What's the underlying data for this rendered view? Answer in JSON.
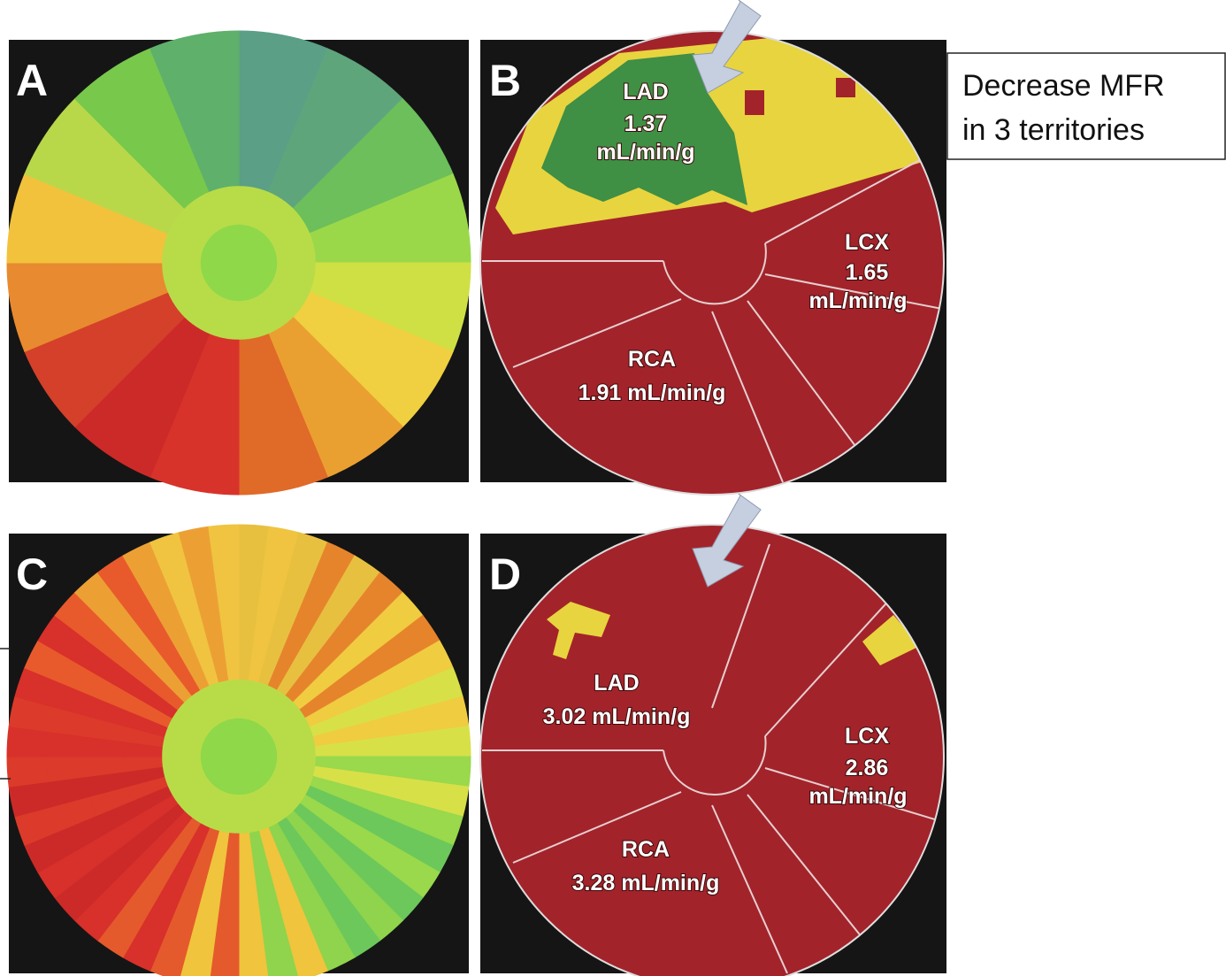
{
  "panels": [
    {
      "label": "A"
    },
    {
      "label": "B",
      "territories": [
        {
          "name": "LAD",
          "value": [
            "1.37",
            "mL/min/g"
          ]
        },
        {
          "name": "LCX",
          "value": [
            "1.65",
            "mL/min/g"
          ]
        },
        {
          "name": "RCA",
          "value": [
            "1.91 mL/min/g"
          ]
        }
      ]
    },
    {
      "label": "C"
    },
    {
      "label": "D",
      "territories": [
        {
          "name": "LAD",
          "value": [
            "3.02 mL/min/g"
          ]
        },
        {
          "name": "LCX",
          "value": [
            "2.86",
            "mL/min/g"
          ]
        },
        {
          "name": "RCA",
          "value": [
            "3.28 mL/min/g"
          ]
        }
      ]
    }
  ],
  "annotation": {
    "lines": [
      "Decrease MFR",
      "in 3 territories"
    ]
  }
}
